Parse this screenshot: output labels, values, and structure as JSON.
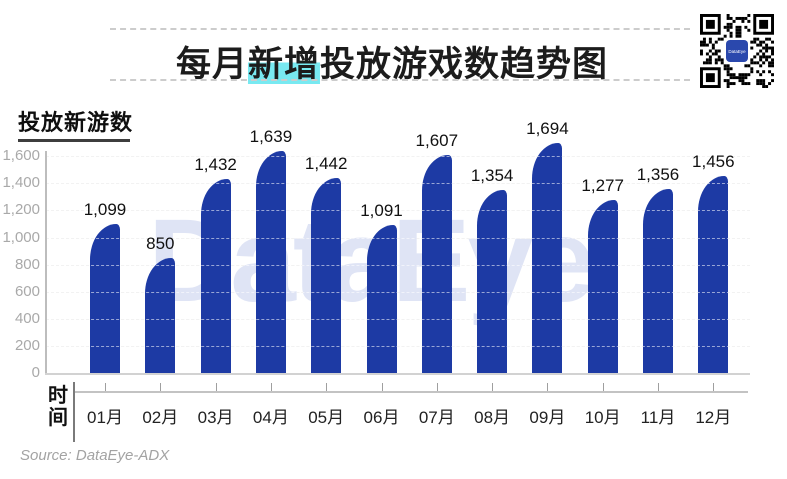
{
  "header": {
    "title_prefix": "每月",
    "title_highlight": "新增",
    "title_suffix": "投放游戏数趋势图"
  },
  "qr": {
    "logo_text": "DataEye"
  },
  "watermark_text": "DataEye",
  "y_axis": {
    "title": "投放新游数",
    "tick_labels": [
      "0",
      "200",
      "400",
      "600",
      "800",
      "1,000",
      "1,200",
      "1,400",
      "1,600"
    ]
  },
  "x_axis": {
    "label_chars": [
      "时",
      "间"
    ]
  },
  "footer": {
    "source": "Source: DataEye-ADX"
  },
  "colors": {
    "bar": "#1d3aa4",
    "title_highlight": "#78e9f1",
    "watermark": "#dfe4f5"
  },
  "chart_data": {
    "type": "bar",
    "title": "每月新增投放游戏数趋势图",
    "categories": [
      "01月",
      "02月",
      "03月",
      "04月",
      "05月",
      "06月",
      "07月",
      "08月",
      "09月",
      "10月",
      "11月",
      "12月"
    ],
    "values": [
      1099,
      850,
      1432,
      1639,
      1442,
      1091,
      1607,
      1354,
      1694,
      1277,
      1356,
      1456
    ],
    "value_labels": [
      "1,099",
      "850",
      "1,432",
      "1,639",
      "1,442",
      "1,091",
      "1,607",
      "1,354",
      "1,694",
      "1,277",
      "1,356",
      "1,456"
    ],
    "xlabel": "时间",
    "ylabel": "投放新游数",
    "ylim": [
      0,
      1700
    ],
    "ytick_step": 200,
    "grid": true,
    "legend": false,
    "source": "Source: DataEye-ADX"
  }
}
